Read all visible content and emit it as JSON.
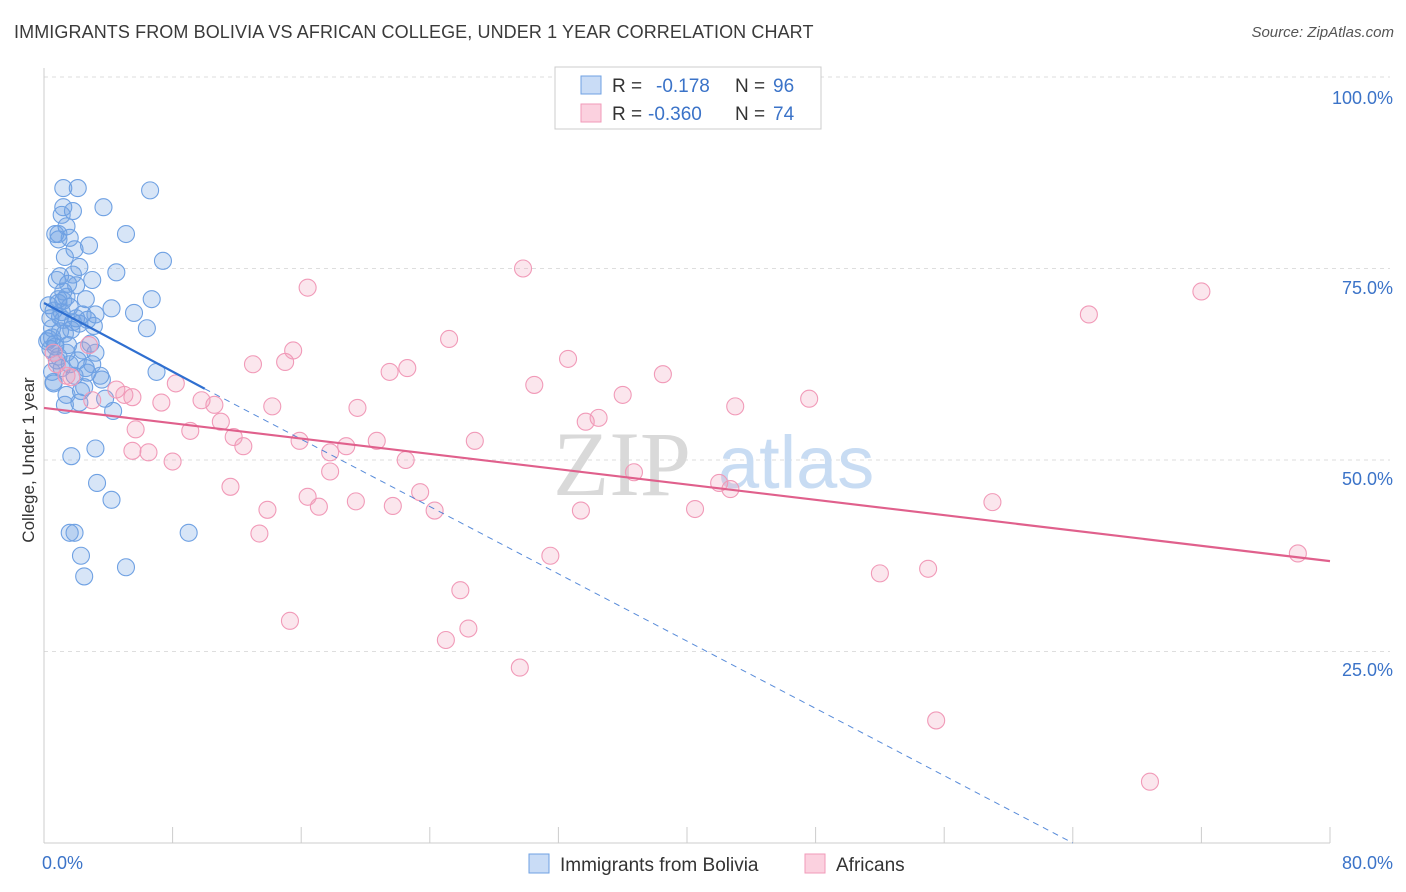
{
  "header": {
    "title": "IMMIGRANTS FROM BOLIVIA VS AFRICAN COLLEGE, UNDER 1 YEAR CORRELATION CHART",
    "source": "Source: ZipAtlas.com"
  },
  "watermark": {
    "part1": "ZIP",
    "part2": "atlas"
  },
  "chart_data": {
    "type": "scatter",
    "title": "IMMIGRANTS FROM BOLIVIA VS AFRICAN COLLEGE, UNDER 1 YEAR CORRELATION CHART",
    "xlabel": "",
    "ylabel": "College, Under 1 year",
    "xlim": [
      0,
      80
    ],
    "ylim": [
      0,
      100
    ],
    "x_tick_labels": {
      "min": "0.0%",
      "max": "80.0%"
    },
    "y_tick_labels": [
      "25.0%",
      "50.0%",
      "75.0%",
      "100.0%"
    ],
    "grid": true,
    "legend_stats": [
      {
        "r_label": "R =",
        "r_value": "-0.178",
        "n_label": "N =",
        "n_value": "96"
      },
      {
        "r_label": "R =",
        "r_value": "-0.360",
        "n_label": "N =",
        "n_value": "74"
      }
    ],
    "series": [
      {
        "name": "Immigrants from Bolivia",
        "color": "#6fa1e3",
        "line_color": "#2f6fd0",
        "trend": {
          "x0": 0,
          "y0": 70.5,
          "x1": 10,
          "y1": 59.3,
          "dash_x1": 64,
          "dash_y1": 0
        },
        "points": [
          [
            1.2,
            85.5
          ],
          [
            2.1,
            85.5
          ],
          [
            6.6,
            85.2
          ],
          [
            1.2,
            83.0
          ],
          [
            1.8,
            82.5
          ],
          [
            3.7,
            83.0
          ],
          [
            1.4,
            80.5
          ],
          [
            0.7,
            79.5
          ],
          [
            0.9,
            79.5
          ],
          [
            1.6,
            79.0
          ],
          [
            2.8,
            78.0
          ],
          [
            1.9,
            77.5
          ],
          [
            5.1,
            79.5
          ],
          [
            7.4,
            76.0
          ],
          [
            1.3,
            76.5
          ],
          [
            2.2,
            75.2
          ],
          [
            4.5,
            74.5
          ],
          [
            1.0,
            74.0
          ],
          [
            0.8,
            73.5
          ],
          [
            1.5,
            73.0
          ],
          [
            2.0,
            72.8
          ],
          [
            3.0,
            73.5
          ],
          [
            1.2,
            72.0
          ],
          [
            2.6,
            71.0
          ],
          [
            6.7,
            71.0
          ],
          [
            0.9,
            70.5
          ],
          [
            1.6,
            70.0
          ],
          [
            0.6,
            69.5
          ],
          [
            1.1,
            69.3
          ],
          [
            2.4,
            69.0
          ],
          [
            3.2,
            69.0
          ],
          [
            4.2,
            69.8
          ],
          [
            5.6,
            69.2
          ],
          [
            0.4,
            68.5
          ],
          [
            1.2,
            68.3
          ],
          [
            1.8,
            68.0
          ],
          [
            2.7,
            68.3
          ],
          [
            3.1,
            67.5
          ],
          [
            6.4,
            67.2
          ],
          [
            0.5,
            67.2
          ],
          [
            1.3,
            66.5
          ],
          [
            0.3,
            65.8
          ],
          [
            0.7,
            65.2
          ],
          [
            1.5,
            65.0
          ],
          [
            0.4,
            64.5
          ],
          [
            2.4,
            64.3
          ],
          [
            3.2,
            64.0
          ],
          [
            0.9,
            63.5
          ],
          [
            2.1,
            63.0
          ],
          [
            3.0,
            62.5
          ],
          [
            1.1,
            62.0
          ],
          [
            0.5,
            61.5
          ],
          [
            2.7,
            61.4
          ],
          [
            3.5,
            61.0
          ],
          [
            7.0,
            61.5
          ],
          [
            0.6,
            60.2
          ],
          [
            2.5,
            59.5
          ],
          [
            3.6,
            60.5
          ],
          [
            1.3,
            57.2
          ],
          [
            2.2,
            57.5
          ],
          [
            4.3,
            56.4
          ],
          [
            3.2,
            51.5
          ],
          [
            1.7,
            50.5
          ],
          [
            3.3,
            47.0
          ],
          [
            4.2,
            44.8
          ],
          [
            1.6,
            40.5
          ],
          [
            1.9,
            40.5
          ],
          [
            9.0,
            40.5
          ],
          [
            2.3,
            37.5
          ],
          [
            5.1,
            36.0
          ],
          [
            2.5,
            34.8
          ],
          [
            0.9,
            71.0
          ],
          [
            1.4,
            71.3
          ],
          [
            1.0,
            68.7
          ],
          [
            2.0,
            68.5
          ],
          [
            1.7,
            67.0
          ],
          [
            0.5,
            66.0
          ],
          [
            2.9,
            65.2
          ],
          [
            1.4,
            64.0
          ],
          [
            0.8,
            63.0
          ],
          [
            1.6,
            62.5
          ],
          [
            2.6,
            62.0
          ],
          [
            1.9,
            61.0
          ],
          [
            0.6,
            60.0
          ],
          [
            2.3,
            59.0
          ],
          [
            1.4,
            58.5
          ],
          [
            3.8,
            58.0
          ],
          [
            0.7,
            64.8
          ],
          [
            1.0,
            66.8
          ],
          [
            2.2,
            67.8
          ],
          [
            0.3,
            70.2
          ],
          [
            1.2,
            70.8
          ],
          [
            0.2,
            65.5
          ],
          [
            1.8,
            74.2
          ],
          [
            0.9,
            78.8
          ],
          [
            1.1,
            82.0
          ]
        ]
      },
      {
        "name": "Africans",
        "color": "#f19ab8",
        "line_color": "#e0608c",
        "trend": {
          "x0": 0,
          "y0": 56.8,
          "x1": 80,
          "y1": 36.8
        },
        "points": [
          [
            29.8,
            75.0
          ],
          [
            16.4,
            72.5
          ],
          [
            72.0,
            72.0
          ],
          [
            65.0,
            69.0
          ],
          [
            25.2,
            65.8
          ],
          [
            15.5,
            64.3
          ],
          [
            0.6,
            64.0
          ],
          [
            32.6,
            63.2
          ],
          [
            13.0,
            62.5
          ],
          [
            15.0,
            62.8
          ],
          [
            22.6,
            62.0
          ],
          [
            21.5,
            61.5
          ],
          [
            38.5,
            61.2
          ],
          [
            1.4,
            61.0
          ],
          [
            1.7,
            60.8
          ],
          [
            8.2,
            60.0
          ],
          [
            30.5,
            59.8
          ],
          [
            4.5,
            59.2
          ],
          [
            5.0,
            58.5
          ],
          [
            5.5,
            58.2
          ],
          [
            3.0,
            57.8
          ],
          [
            9.8,
            57.8
          ],
          [
            10.6,
            57.2
          ],
          [
            14.2,
            57.0
          ],
          [
            19.5,
            56.8
          ],
          [
            43.0,
            57.0
          ],
          [
            34.5,
            55.5
          ],
          [
            33.7,
            55.0
          ],
          [
            5.7,
            54.0
          ],
          [
            9.1,
            53.8
          ],
          [
            11.8,
            53.0
          ],
          [
            15.9,
            52.5
          ],
          [
            20.7,
            52.5
          ],
          [
            12.4,
            51.8
          ],
          [
            18.8,
            51.8
          ],
          [
            5.5,
            51.2
          ],
          [
            6.5,
            51.0
          ],
          [
            17.8,
            51.0
          ],
          [
            22.5,
            50.0
          ],
          [
            8.0,
            49.8
          ],
          [
            36.7,
            48.4
          ],
          [
            17.8,
            48.5
          ],
          [
            42.0,
            47.0
          ],
          [
            42.7,
            46.2
          ],
          [
            11.6,
            46.5
          ],
          [
            23.4,
            45.8
          ],
          [
            16.4,
            45.2
          ],
          [
            59.0,
            44.5
          ],
          [
            19.4,
            44.6
          ],
          [
            21.7,
            44.0
          ],
          [
            17.1,
            43.9
          ],
          [
            13.9,
            43.5
          ],
          [
            24.3,
            43.4
          ],
          [
            33.4,
            43.4
          ],
          [
            40.5,
            43.6
          ],
          [
            13.4,
            40.4
          ],
          [
            31.5,
            37.5
          ],
          [
            78.0,
            37.8
          ],
          [
            55.0,
            35.8
          ],
          [
            52.0,
            35.2
          ],
          [
            25.9,
            33.0
          ],
          [
            15.3,
            29.0
          ],
          [
            26.4,
            28.0
          ],
          [
            25.0,
            26.5
          ],
          [
            29.6,
            22.9
          ],
          [
            55.5,
            16.0
          ],
          [
            68.8,
            8.0
          ],
          [
            0.8,
            62.5
          ],
          [
            2.8,
            65.0
          ],
          [
            7.3,
            57.5
          ],
          [
            11.0,
            55.0
          ],
          [
            26.8,
            52.5
          ],
          [
            36.0,
            58.5
          ],
          [
            47.6,
            58.0
          ]
        ]
      }
    ]
  },
  "legend": {
    "items": [
      {
        "label": "Immigrants from Bolivia",
        "color": "#6fa1e3"
      },
      {
        "label": "Africans",
        "color": "#f19ab8"
      }
    ]
  }
}
